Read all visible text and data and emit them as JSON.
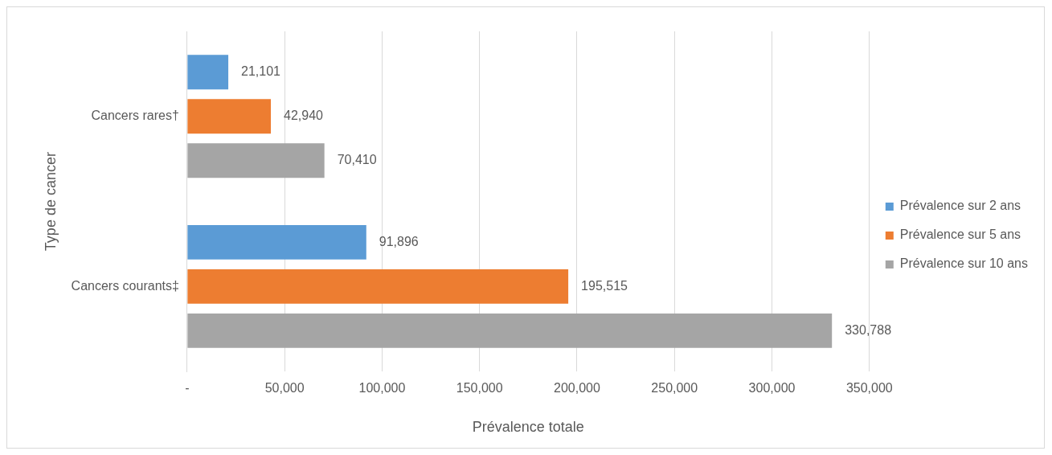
{
  "chart_data": {
    "type": "bar",
    "orientation": "horizontal",
    "xlabel": "Prévalence totale",
    "ylabel": "Type de cancer",
    "categories": [
      "Cancers rares†",
      "Cancers courants‡"
    ],
    "series": [
      {
        "name": "Prévalence sur 2 ans",
        "color": "#5b9bd5",
        "values": [
          21101,
          91896
        ],
        "value_labels": [
          "21,101",
          "91,896"
        ]
      },
      {
        "name": "Prévalence sur 5 ans",
        "color": "#ed7d31",
        "values": [
          42940,
          195515
        ],
        "value_labels": [
          "42,940",
          "195,515"
        ]
      },
      {
        "name": "Prévalence sur 10 ans",
        "color": "#a5a5a5",
        "values": [
          70410,
          330788
        ],
        "value_labels": [
          "70,410",
          "330,788"
        ]
      }
    ],
    "xlim": [
      0,
      350000
    ],
    "xticks": [
      {
        "value": 0,
        "label": "-"
      },
      {
        "value": 50000,
        "label": "50,000"
      },
      {
        "value": 100000,
        "label": "100,000"
      },
      {
        "value": 150000,
        "label": "150,000"
      },
      {
        "value": 200000,
        "label": "200,000"
      },
      {
        "value": 250000,
        "label": "250,000"
      },
      {
        "value": 300000,
        "label": "300,000"
      },
      {
        "value": 350000,
        "label": "350,000"
      }
    ],
    "grid": "x",
    "legend": "right"
  }
}
